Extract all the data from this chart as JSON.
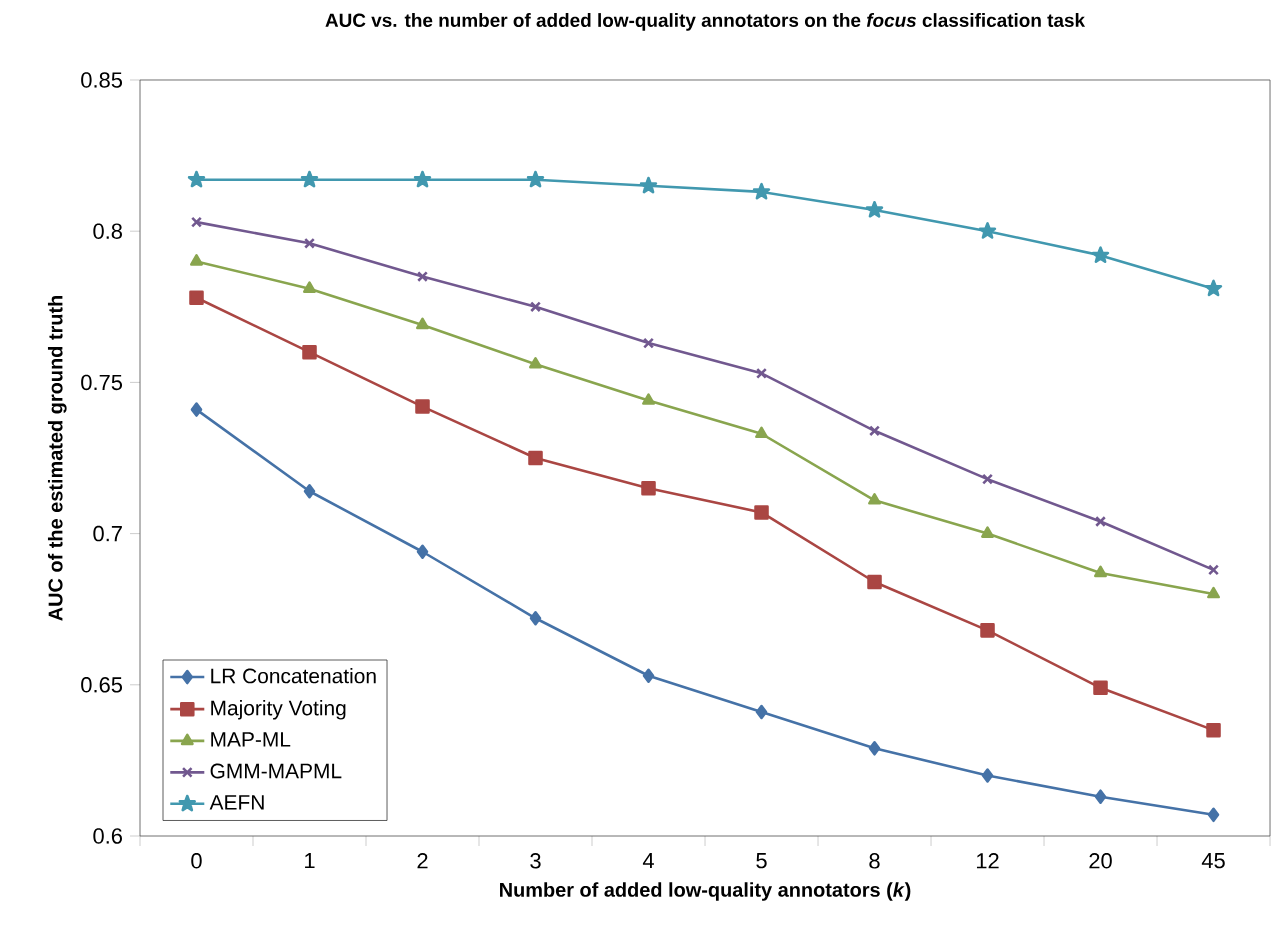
{
  "chart_data": {
    "type": "line",
    "title": "AUC vs. the number of added low-quality annotators on the *focus* classification task",
    "xlabel": "Number of added low-quality annotators (*k*)",
    "ylabel": "AUC of the estimated ground truth",
    "categories": [
      "0",
      "1",
      "2",
      "3",
      "4",
      "5",
      "8",
      "12",
      "20",
      "45"
    ],
    "ylim": [
      0.6,
      0.85
    ],
    "yticks": [
      0.6,
      0.65,
      0.7,
      0.75,
      0.8,
      0.85
    ],
    "legend": "bottom left",
    "grid": false,
    "series": [
      {
        "name": "LR Concatenation",
        "color": "#4572a7",
        "marker": "diamond",
        "values": [
          0.741,
          0.714,
          0.694,
          0.672,
          0.653,
          0.641,
          0.629,
          0.62,
          0.613,
          0.607
        ]
      },
      {
        "name": "Majority Voting",
        "color": "#aa4643",
        "marker": "square",
        "values": [
          0.778,
          0.76,
          0.742,
          0.725,
          0.715,
          0.707,
          0.684,
          0.668,
          0.649,
          0.635
        ]
      },
      {
        "name": "MAP-ML",
        "color": "#89a54e",
        "marker": "triangle",
        "values": [
          0.79,
          0.781,
          0.769,
          0.756,
          0.744,
          0.733,
          0.711,
          0.7,
          0.687,
          0.68
        ]
      },
      {
        "name": "GMM-MAPML",
        "color": "#71588f",
        "marker": "cross",
        "values": [
          0.803,
          0.796,
          0.785,
          0.775,
          0.763,
          0.753,
          0.734,
          0.718,
          0.704,
          0.688
        ]
      },
      {
        "name": "AEFN",
        "color": "#4198af",
        "marker": "star",
        "values": [
          0.817,
          0.817,
          0.817,
          0.817,
          0.815,
          0.813,
          0.807,
          0.8,
          0.792,
          0.781
        ]
      }
    ]
  }
}
